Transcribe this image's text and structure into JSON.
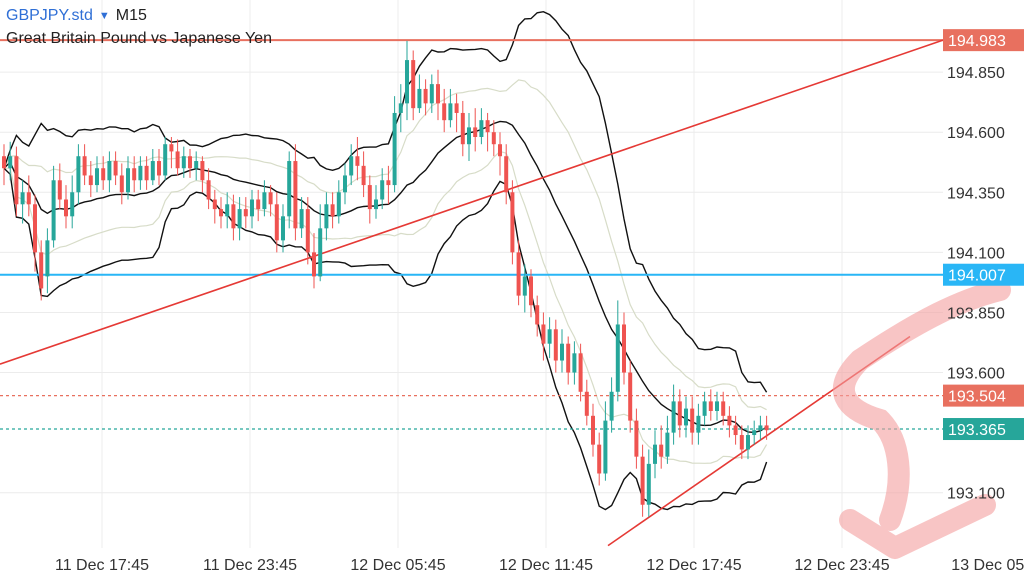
{
  "header": {
    "symbol": "GBPJPY.std",
    "dropdown_icon": "caret-down-icon",
    "timeframe": "M15",
    "description": "Great Britain Pound vs Japanese Yen"
  },
  "colors": {
    "bull": "#26a69a",
    "bear": "#ef5350",
    "trendline": "#e53935",
    "blue_level": "#29b6f6",
    "teal_level": "#26a69a",
    "bollinger": "#111111",
    "inner_band": "#d7dcc8",
    "grid": "#ececec",
    "arrow": "#f4a0a0"
  },
  "chart_data": {
    "type": "candlestick",
    "ylim": [
      192.87,
      195.15
    ],
    "y_ticks": [
      "194.850",
      "194.600",
      "194.350",
      "194.100",
      "193.850",
      "193.600",
      "193.100"
    ],
    "x_ticks": [
      "11 Dec 17:45",
      "11 Dec 23:45",
      "12 Dec 05:45",
      "12 Dec 11:45",
      "12 Dec 17:45",
      "12 Dec 23:45",
      "13 Dec 05:"
    ],
    "price_levels": [
      {
        "label": "194.983",
        "value": 194.983,
        "style": "solid",
        "color": "#e8705f"
      },
      {
        "label": "194.007",
        "value": 194.007,
        "style": "solid",
        "color": "#29b6f6"
      },
      {
        "label": "193.504",
        "value": 193.504,
        "style": "dashed",
        "color": "#e8705f"
      },
      {
        "label": "193.365",
        "value": 193.365,
        "style": "dashed",
        "color": "#26a69a"
      }
    ],
    "candles": [
      [
        194.5,
        194.45,
        194.55,
        194.38
      ],
      [
        194.45,
        194.5,
        194.56,
        194.4
      ],
      [
        194.5,
        194.3,
        194.54,
        194.25
      ],
      [
        194.3,
        194.35,
        194.4,
        194.22
      ],
      [
        194.35,
        194.3,
        194.42,
        194.25
      ],
      [
        194.3,
        194.1,
        194.34,
        194.02
      ],
      [
        194.1,
        193.95,
        194.15,
        193.9
      ],
      [
        194.0,
        194.15,
        194.2,
        193.93
      ],
      [
        194.15,
        194.4,
        194.46,
        194.12
      ],
      [
        194.4,
        194.32,
        194.47,
        194.28
      ],
      [
        194.32,
        194.25,
        194.38,
        194.2
      ],
      [
        194.25,
        194.35,
        194.42,
        194.2
      ],
      [
        194.35,
        194.5,
        194.55,
        194.3
      ],
      [
        194.5,
        194.42,
        194.55,
        194.38
      ],
      [
        194.42,
        194.38,
        194.48,
        194.33
      ],
      [
        194.38,
        194.45,
        194.5,
        194.35
      ],
      [
        194.45,
        194.4,
        194.5,
        194.36
      ],
      [
        194.4,
        194.48,
        194.52,
        194.35
      ],
      [
        194.48,
        194.42,
        194.52,
        194.38
      ],
      [
        194.42,
        194.35,
        194.47,
        194.3
      ],
      [
        194.35,
        194.45,
        194.5,
        194.32
      ],
      [
        194.45,
        194.4,
        194.5,
        194.35
      ],
      [
        194.4,
        194.46,
        194.5,
        194.36
      ],
      [
        194.46,
        194.4,
        194.5,
        194.36
      ],
      [
        194.4,
        194.48,
        194.53,
        194.38
      ],
      [
        194.48,
        194.42,
        194.53,
        194.38
      ],
      [
        194.42,
        194.55,
        194.58,
        194.4
      ],
      [
        194.55,
        194.52,
        194.58,
        194.45
      ],
      [
        194.52,
        194.45,
        194.57,
        194.42
      ],
      [
        194.45,
        194.5,
        194.54,
        194.41
      ],
      [
        194.5,
        194.45,
        194.53,
        194.41
      ],
      [
        194.45,
        194.48,
        194.52,
        194.4
      ],
      [
        194.48,
        194.4,
        194.5,
        194.35
      ],
      [
        194.4,
        194.32,
        194.45,
        194.28
      ],
      [
        194.32,
        194.28,
        194.36,
        194.22
      ],
      [
        194.28,
        194.25,
        194.33,
        194.2
      ],
      [
        194.25,
        194.3,
        194.35,
        194.2
      ],
      [
        194.3,
        194.2,
        194.34,
        194.15
      ],
      [
        194.2,
        194.28,
        194.33,
        194.15
      ],
      [
        194.28,
        194.25,
        194.33,
        194.2
      ],
      [
        194.25,
        194.32,
        194.36,
        194.2
      ],
      [
        194.32,
        194.28,
        194.36,
        194.23
      ],
      [
        194.28,
        194.35,
        194.4,
        194.25
      ],
      [
        194.35,
        194.3,
        194.38,
        194.25
      ],
      [
        194.3,
        194.15,
        194.35,
        194.1
      ],
      [
        194.15,
        194.25,
        194.3,
        194.1
      ],
      [
        194.25,
        194.48,
        194.52,
        194.2
      ],
      [
        194.48,
        194.2,
        194.55,
        194.15
      ],
      [
        194.2,
        194.28,
        194.33,
        194.16
      ],
      [
        194.28,
        194.1,
        194.33,
        194.05
      ],
      [
        194.1,
        194.0,
        194.18,
        193.95
      ],
      [
        194.0,
        194.2,
        194.3,
        193.98
      ],
      [
        194.2,
        194.3,
        194.35,
        194.15
      ],
      [
        194.3,
        194.25,
        194.35,
        194.2
      ],
      [
        194.25,
        194.35,
        194.4,
        194.22
      ],
      [
        194.35,
        194.42,
        194.47,
        194.3
      ],
      [
        194.42,
        194.5,
        194.55,
        194.38
      ],
      [
        194.5,
        194.46,
        194.58,
        194.4
      ],
      [
        194.46,
        194.38,
        194.52,
        194.33
      ],
      [
        194.38,
        194.28,
        194.42,
        194.22
      ],
      [
        194.28,
        194.32,
        194.38,
        194.24
      ],
      [
        194.32,
        194.4,
        194.45,
        194.28
      ],
      [
        194.4,
        194.38,
        194.46,
        194.3
      ],
      [
        194.38,
        194.68,
        194.75,
        194.35
      ],
      [
        194.68,
        194.72,
        194.8,
        194.6
      ],
      [
        194.72,
        194.9,
        194.98,
        194.65
      ],
      [
        194.9,
        194.7,
        194.94,
        194.65
      ],
      [
        194.7,
        194.78,
        194.84,
        194.68
      ],
      [
        194.78,
        194.72,
        194.82,
        194.67
      ],
      [
        194.72,
        194.8,
        194.84,
        194.68
      ],
      [
        194.8,
        194.72,
        194.86,
        194.65
      ],
      [
        194.72,
        194.65,
        194.78,
        194.6
      ],
      [
        194.65,
        194.72,
        194.78,
        194.62
      ],
      [
        194.72,
        194.68,
        194.76,
        194.6
      ],
      [
        194.68,
        194.55,
        194.73,
        194.5
      ],
      [
        194.55,
        194.62,
        194.68,
        194.48
      ],
      [
        194.62,
        194.58,
        194.7,
        194.52
      ],
      [
        194.58,
        194.65,
        194.7,
        194.55
      ],
      [
        194.65,
        194.6,
        194.68,
        194.52
      ],
      [
        194.6,
        194.55,
        194.65,
        194.5
      ],
      [
        194.55,
        194.5,
        194.6,
        194.42
      ],
      [
        194.5,
        194.35,
        194.55,
        194.3
      ],
      [
        194.35,
        194.1,
        194.4,
        194.05
      ],
      [
        194.1,
        193.92,
        194.15,
        193.88
      ],
      [
        193.92,
        194.0,
        194.05,
        193.85
      ],
      [
        194.0,
        193.88,
        194.03,
        193.83
      ],
      [
        193.88,
        193.8,
        193.92,
        193.75
      ],
      [
        193.8,
        193.72,
        193.85,
        193.65
      ],
      [
        193.72,
        193.78,
        193.83,
        193.66
      ],
      [
        193.78,
        193.65,
        193.82,
        193.6
      ],
      [
        193.65,
        193.72,
        193.78,
        193.6
      ],
      [
        193.72,
        193.6,
        193.75,
        193.55
      ],
      [
        193.6,
        193.68,
        193.73,
        193.55
      ],
      [
        193.68,
        193.52,
        193.72,
        193.48
      ],
      [
        193.52,
        193.42,
        193.57,
        193.38
      ],
      [
        193.42,
        193.3,
        193.47,
        193.25
      ],
      [
        193.3,
        193.18,
        193.35,
        193.13
      ],
      [
        193.18,
        193.4,
        193.48,
        193.15
      ],
      [
        193.4,
        193.52,
        193.58,
        193.35
      ],
      [
        193.52,
        193.8,
        193.9,
        193.48
      ],
      [
        193.8,
        193.6,
        193.85,
        193.55
      ],
      [
        193.6,
        193.4,
        193.65,
        193.35
      ],
      [
        193.4,
        193.25,
        193.45,
        193.2
      ],
      [
        193.25,
        193.05,
        193.3,
        193.0
      ],
      [
        193.05,
        193.22,
        193.28,
        193.0
      ],
      [
        193.22,
        193.3,
        193.36,
        193.16
      ],
      [
        193.3,
        193.25,
        193.38,
        193.2
      ],
      [
        193.25,
        193.35,
        193.42,
        193.22
      ],
      [
        193.35,
        193.48,
        193.55,
        193.3
      ],
      [
        193.48,
        193.38,
        193.53,
        193.33
      ],
      [
        193.38,
        193.45,
        193.5,
        193.33
      ],
      [
        193.45,
        193.35,
        193.5,
        193.3
      ],
      [
        193.35,
        193.42,
        193.47,
        193.3
      ],
      [
        193.42,
        193.48,
        193.52,
        193.38
      ],
      [
        193.48,
        193.44,
        193.53,
        193.4
      ],
      [
        193.44,
        193.48,
        193.52,
        193.4
      ],
      [
        193.48,
        193.42,
        193.52,
        193.38
      ],
      [
        193.42,
        193.38,
        193.46,
        193.33
      ],
      [
        193.38,
        193.34,
        193.42,
        193.3
      ],
      [
        193.34,
        193.28,
        193.38,
        193.24
      ],
      [
        193.28,
        193.34,
        193.38,
        193.24
      ],
      [
        193.34,
        193.36,
        193.4,
        193.3
      ],
      [
        193.36,
        193.38,
        193.42,
        193.32
      ],
      [
        193.38,
        193.36,
        193.42,
        193.32
      ]
    ]
  }
}
